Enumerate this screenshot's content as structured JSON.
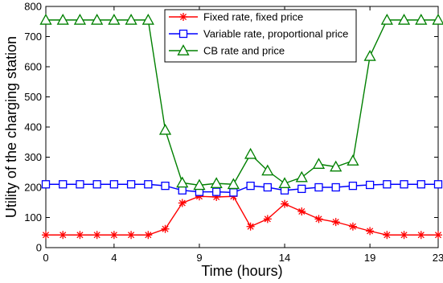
{
  "chart_data": {
    "type": "line",
    "xlabel": "Time (hours)",
    "ylabel": "Utility of the charging station",
    "xlim": [
      0,
      23
    ],
    "ylim": [
      0,
      800
    ],
    "xticks": [
      0,
      4,
      9,
      14,
      19,
      23
    ],
    "yticks": [
      0,
      100,
      200,
      300,
      400,
      500,
      600,
      700,
      800
    ],
    "grid": false,
    "legend_position": "top-center",
    "x": [
      0,
      1,
      2,
      3,
      4,
      5,
      6,
      7,
      8,
      9,
      10,
      11,
      12,
      13,
      14,
      15,
      16,
      17,
      18,
      19,
      20,
      21,
      22,
      23
    ],
    "series": [
      {
        "name": "Fixed rate, fixed price",
        "color": "#ff0000",
        "marker": "asterisk",
        "values": [
          42,
          42,
          42,
          42,
          42,
          42,
          42,
          62,
          148,
          170,
          168,
          170,
          70,
          95,
          145,
          120,
          95,
          85,
          70,
          55,
          42,
          42,
          42,
          42
        ]
      },
      {
        "name": "Variable rate, proportional price",
        "color": "#0000ff",
        "marker": "square",
        "values": [
          210,
          210,
          210,
          210,
          210,
          210,
          210,
          205,
          190,
          185,
          185,
          183,
          205,
          200,
          190,
          195,
          200,
          200,
          205,
          208,
          210,
          210,
          210,
          210
        ]
      },
      {
        "name": "CB rate and price",
        "color": "#008000",
        "marker": "triangle",
        "values": [
          755,
          755,
          755,
          755,
          755,
          755,
          755,
          390,
          215,
          207,
          213,
          210,
          310,
          255,
          213,
          233,
          277,
          268,
          288,
          635,
          755,
          755,
          755,
          755
        ]
      }
    ]
  }
}
